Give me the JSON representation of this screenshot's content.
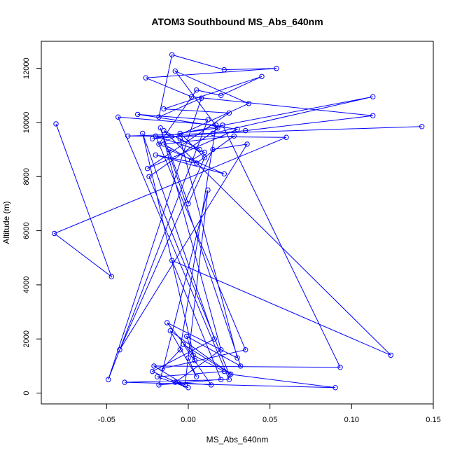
{
  "chart_data": {
    "type": "line",
    "title": "ATOM3 Southbound MS_Abs_640nm",
    "xlabel": "MS_Abs_640nm",
    "ylabel": "Altitude (m)",
    "xlim": [
      -0.09,
      0.15
    ],
    "ylim": [
      -400,
      13000
    ],
    "xticks": [
      -0.05,
      0.0,
      0.05,
      0.1,
      0.15
    ],
    "xtick_labels": [
      "-0.05",
      "0.00",
      "0.05",
      "0.10",
      "0.15"
    ],
    "yticks": [
      0,
      2000,
      4000,
      6000,
      8000,
      10000,
      12000
    ],
    "ytick_labels": [
      "0",
      "2000",
      "4000",
      "6000",
      "8000",
      "10000",
      "12000"
    ],
    "grid": false,
    "legend": "none",
    "series": [
      {
        "color": "#0000ff",
        "marker": "open-circle",
        "x": [
          -0.081,
          -0.047,
          -0.082,
          0.06,
          -0.037,
          0.143,
          0.015,
          0.113,
          -0.022,
          0.035,
          0.113,
          0.002,
          -0.026,
          0.054,
          0.022,
          -0.01,
          -0.018,
          0.008,
          -0.049,
          0.012,
          -0.031,
          0.03,
          -0.025,
          0.025,
          -0.015,
          0.045,
          0.02,
          0.005,
          -0.018,
          0.037,
          -0.008,
          0.018,
          -0.005,
          0.01,
          -0.042,
          0.036,
          0.015,
          0.0,
          -0.012,
          0.022,
          -0.02,
          0.005,
          0.028,
          -0.015,
          0.002,
          0.01,
          -0.02,
          0.035,
          -0.016,
          -0.005,
          0.017,
          -0.043,
          0.025,
          -0.039,
          0.09,
          0.025,
          -0.024,
          0.021,
          0.093,
          -0.021,
          -0.002,
          0.012,
          -0.018,
          0.02,
          -0.01,
          0.124,
          -0.015,
          0.007,
          -0.005,
          0.03,
          -0.013,
          0.003,
          0.022,
          -0.019,
          0.0,
          -0.022,
          0.016,
          -0.028,
          0.004,
          -0.001,
          0.032,
          -0.017,
          0.02,
          -0.008,
          0.014,
          -0.003,
          0.026,
          -0.011,
          0.005,
          0.0
        ],
        "y": [
          9950,
          4300,
          5900,
          9450,
          9500,
          9850,
          9600,
          10950,
          9400,
          9700,
          10250,
          10950,
          11650,
          12000,
          11950,
          12500,
          10200,
          10900,
          500,
          10100,
          10300,
          9750,
          8300,
          10350,
          10500,
          11700,
          11000,
          11200,
          9200,
          10700,
          11900,
          9800,
          9600,
          8700,
          1600,
          9200,
          9000,
          7000,
          9000,
          8100,
          8800,
          8500,
          9500,
          9200,
          8600,
          8900,
          9500,
          1600,
          900,
          1600,
          9900,
          10200,
          500,
          400,
          200,
          700,
          8000,
          9900,
          950,
          1000,
          300,
          7500,
          300,
          500,
          4900,
          1400,
          9700,
          9000,
          9400,
          1300,
          2600,
          1400,
          800,
          600,
          200,
          800,
          2000,
          9600,
          1200,
          2100,
          1000,
          9800,
          1600,
          400,
          300,
          1800,
          700,
          2300,
          600,
          1300
        ]
      }
    ]
  }
}
